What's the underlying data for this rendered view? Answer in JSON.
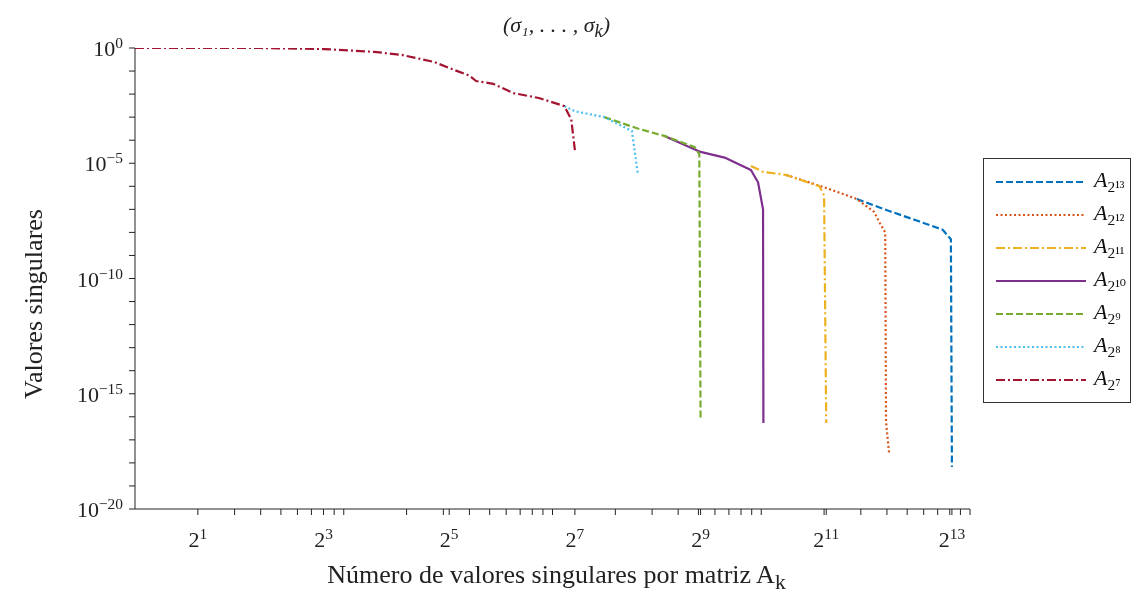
{
  "chart_data": {
    "type": "line",
    "title": "(σ₁, . . . , σ$_{k}$)",
    "xlabel": "Número de valores singulares por matriz A$_{k}$",
    "ylabel": "Valores singulares",
    "log": "xy",
    "grid": false,
    "legend": "right",
    "marker": "none",
    "xlim": [
      1,
      10000
    ],
    "ylim": [
      1e-20,
      1
    ],
    "xticks": [
      {
        "value": 2,
        "label": "2$^{1}$"
      },
      {
        "value": 3,
        "label": null
      },
      {
        "value": 4,
        "label": null
      },
      {
        "value": 5,
        "label": null
      },
      {
        "value": 6,
        "label": null
      },
      {
        "value": 7,
        "label": null
      },
      {
        "value": 8,
        "label": "2$^{3}$"
      },
      {
        "value": 9,
        "label": null
      },
      {
        "value": 10,
        "label": null
      },
      {
        "value": 20,
        "label": null
      },
      {
        "value": 30,
        "label": null
      },
      {
        "value": 32,
        "label": "2$^{5}$"
      },
      {
        "value": 40,
        "label": null
      },
      {
        "value": 50,
        "label": null
      },
      {
        "value": 60,
        "label": null
      },
      {
        "value": 70,
        "label": null
      },
      {
        "value": 80,
        "label": null
      },
      {
        "value": 90,
        "label": null
      },
      {
        "value": 100,
        "label": null
      },
      {
        "value": 128,
        "label": "2$^{7}$"
      },
      {
        "value": 200,
        "label": null
      },
      {
        "value": 300,
        "label": null
      },
      {
        "value": 400,
        "label": null
      },
      {
        "value": 500,
        "label": null
      },
      {
        "value": 512,
        "label": "2$^{9}$"
      },
      {
        "value": 600,
        "label": null
      },
      {
        "value": 700,
        "label": null
      },
      {
        "value": 800,
        "label": null
      },
      {
        "value": 900,
        "label": null
      },
      {
        "value": 1000,
        "label": null
      },
      {
        "value": 2000,
        "label": null
      },
      {
        "value": 2048,
        "label": "2$^{11}$"
      },
      {
        "value": 3000,
        "label": null
      },
      {
        "value": 4000,
        "label": null
      },
      {
        "value": 5000,
        "label": null
      },
      {
        "value": 6000,
        "label": null
      },
      {
        "value": 7000,
        "label": null
      },
      {
        "value": 8000,
        "label": null
      },
      {
        "value": 8192,
        "label": "2$^{13}$"
      },
      {
        "value": 9000,
        "label": null
      },
      {
        "value": 10000,
        "label": null
      }
    ],
    "yticks": [
      {
        "value": 1e-20,
        "label": "10$^{−20}$"
      },
      {
        "value": 1e-19,
        "label": null
      },
      {
        "value": 1e-18,
        "label": null
      },
      {
        "value": 1e-17,
        "label": null
      },
      {
        "value": 1e-16,
        "label": null
      },
      {
        "value": 1e-15,
        "label": "10$^{−15}$"
      },
      {
        "value": 1e-14,
        "label": null
      },
      {
        "value": 1e-13,
        "label": null
      },
      {
        "value": 1e-12,
        "label": null
      },
      {
        "value": 1e-11,
        "label": null
      },
      {
        "value": 1e-10,
        "label": "10$^{−10}$"
      },
      {
        "value": 1e-09,
        "label": null
      },
      {
        "value": 1e-08,
        "label": null
      },
      {
        "value": 1e-07,
        "label": null
      },
      {
        "value": 1e-06,
        "label": null
      },
      {
        "value": 1e-05,
        "label": "10$^{−5}$"
      },
      {
        "value": 0.0001,
        "label": null
      },
      {
        "value": 0.001,
        "label": null
      },
      {
        "value": 0.01,
        "label": null
      },
      {
        "value": 0.1,
        "label": null
      },
      {
        "value": 1,
        "label": "10$^{0}$"
      }
    ],
    "series": [
      {
        "name": "A$_{2¹³}$",
        "color": "#0072bd",
        "line_style": "dashed",
        "x": [
          2872,
          4096,
          5600,
          7400,
          8100,
          8192
        ],
        "values": [
          2.8e-07,
          8.5e-08,
          3.2e-08,
          1.3e-08,
          5e-09,
          6.6e-19
        ]
      },
      {
        "name": "A$_{2¹²}$",
        "color": "#d95319",
        "line_style": "dotted",
        "x": [
          1318,
          2048,
          2872,
          3470,
          3700,
          3925,
          3960,
          4096
        ],
        "values": [
          3.1e-06,
          8.5e-07,
          2.8e-07,
          7.8e-08,
          2.5e-08,
          1e-08,
          6e-17,
          2.7e-18
        ]
      },
      {
        "name": "A$_{2¹¹}$",
        "color": "#edb120",
        "line_style": "dashdot",
        "x": [
          892,
          1024,
          1318,
          1900,
          2000,
          2048
        ],
        "values": [
          7.6e-06,
          4.2e-06,
          3.1e-06,
          1e-06,
          4e-07,
          5.4e-17
        ]
      },
      {
        "name": "A$_{2¹⁰}$",
        "color": "#7e2f8e",
        "line_style": "solid",
        "x": [
          346,
          512,
          675,
          892,
          965,
          1020,
          1024
        ],
        "values": [
          0.00015,
          3.1e-05,
          1.7e-05,
          5.1e-06,
          1.5e-06,
          1e-07,
          5.4e-17
        ]
      },
      {
        "name": "A$_{2⁹}$",
        "color": "#77ac30",
        "line_style": "dashed",
        "x": [
          177,
          256,
          346,
          480,
          505,
          512
        ],
        "values": [
          0.001,
          0.00032,
          0.00015,
          5e-05,
          2.5e-05,
          7.2e-17
        ]
      },
      {
        "name": "A$_{2⁸}$",
        "color": "#4dbeee",
        "line_style": "dotted",
        "x": [
          114,
          128,
          177,
          240,
          256
        ],
        "values": [
          0.003,
          0.0018,
          0.001,
          0.00025,
          3.8e-06
        ]
      },
      {
        "name": "A$_{2⁷}$",
        "color": "#a2142f",
        "line_style": "dashdot",
        "x": [
          1,
          4,
          8,
          14,
          19,
          27,
          34,
          40,
          43,
          52,
          65,
          86,
          114,
          123,
          128
        ],
        "values": [
          1,
          1,
          0.9,
          0.68,
          0.5,
          0.25,
          0.11,
          0.063,
          0.037,
          0.028,
          0.011,
          0.0068,
          0.003,
          0.0008,
          3.7e-05
        ]
      }
    ]
  }
}
